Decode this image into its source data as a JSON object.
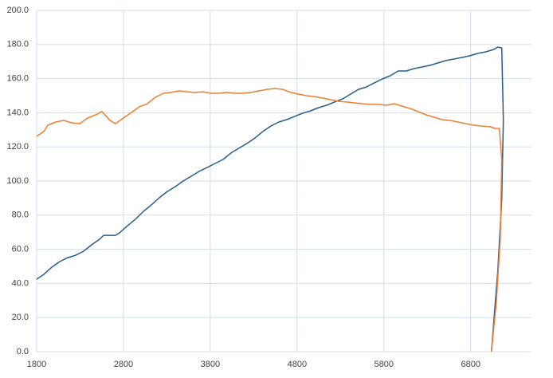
{
  "chart_data": {
    "type": "line",
    "grid": true,
    "xlim": [
      1800,
      7500
    ],
    "xticks": [
      1800,
      2800,
      3800,
      4800,
      5800,
      6800
    ],
    "ylim": [
      0,
      200
    ],
    "yticks": [
      {
        "value": 0,
        "label": "0.0"
      },
      {
        "value": 20,
        "label": "20.0"
      },
      {
        "value": 40,
        "label": "40.0"
      },
      {
        "value": 60,
        "label": "60.0"
      },
      {
        "value": 80,
        "label": "80.0"
      },
      {
        "value": 100,
        "label": "100.0"
      },
      {
        "value": 120,
        "label": "120.0"
      },
      {
        "value": 140,
        "label": "140.0"
      },
      {
        "value": 160,
        "label": "160.0"
      },
      {
        "value": 180,
        "label": "180.0"
      },
      {
        "value": 200,
        "label": "200.0"
      }
    ],
    "series": [
      {
        "color": "#255e8b",
        "x": [
          1800,
          1883,
          1974,
          2066,
          2158,
          2250,
          2341,
          2433,
          2525,
          2571,
          2708,
          2754,
          2846,
          2938,
          3029,
          3121,
          3213,
          3305,
          3396,
          3488,
          3580,
          3671,
          3763,
          3855,
          3947,
          4038,
          4130,
          4222,
          4314,
          4405,
          4497,
          4589,
          4681,
          4772,
          4864,
          4956,
          5048,
          5139,
          5231,
          5323,
          5415,
          5506,
          5598,
          5690,
          5782,
          5873,
          5965,
          6057,
          6149,
          6240,
          6332,
          6424,
          6516,
          6607,
          6699,
          6791,
          6882,
          6974,
          7066,
          7112,
          7158,
          7176,
          7158,
          7112,
          7038
        ],
        "values": [
          42.5,
          45.3,
          49.5,
          52.8,
          55.1,
          56.5,
          58.9,
          62.6,
          65.9,
          68.2,
          68.2,
          69.6,
          73.8,
          77.6,
          82.2,
          86,
          90.2,
          93.9,
          96.7,
          100,
          102.8,
          105.6,
          107.9,
          110.3,
          112.6,
          116.4,
          119.2,
          122,
          125.2,
          129,
          132.2,
          134.6,
          136,
          137.9,
          139.7,
          141.1,
          143,
          144.4,
          146.3,
          148.1,
          150.9,
          153.7,
          155.1,
          157.5,
          159.8,
          161.7,
          164.5,
          164.5,
          165.9,
          166.8,
          167.8,
          169.2,
          170.6,
          171.5,
          172.4,
          173.4,
          174.8,
          175.7,
          177.1,
          178.5,
          178,
          136,
          89.3,
          47.2,
          0
        ]
      },
      {
        "color": "#ed7d31",
        "x": [
          1800,
          1883,
          1928,
          2020,
          2112,
          2204,
          2295,
          2387,
          2479,
          2552,
          2644,
          2708,
          2800,
          2892,
          2983,
          3075,
          3167,
          3259,
          3350,
          3442,
          3534,
          3626,
          3717,
          3809,
          3901,
          3993,
          4084,
          4176,
          4268,
          4360,
          4451,
          4543,
          4635,
          4727,
          4818,
          4910,
          5002,
          5093,
          5185,
          5277,
          5369,
          5460,
          5552,
          5644,
          5736,
          5827,
          5919,
          6011,
          6103,
          6194,
          6286,
          6378,
          6470,
          6561,
          6653,
          6745,
          6837,
          6928,
          7020,
          7084,
          7130,
          7158,
          7140,
          7094,
          7038
        ],
        "values": [
          126.2,
          129,
          132.7,
          134.6,
          135.5,
          134.1,
          133.6,
          136.9,
          138.8,
          140.7,
          135.5,
          133.6,
          136.9,
          140.2,
          143.5,
          145.3,
          149.1,
          151.4,
          151.9,
          152.8,
          152.3,
          151.9,
          152.3,
          151.4,
          151.4,
          151.9,
          151.4,
          151.4,
          151.9,
          152.8,
          153.7,
          154.2,
          153.7,
          151.9,
          150.9,
          150,
          149.5,
          148.6,
          147.7,
          146.7,
          146.3,
          145.8,
          145.3,
          144.9,
          144.9,
          144.4,
          145.3,
          143.9,
          142.5,
          140.7,
          138.8,
          137.4,
          136,
          135.5,
          134.6,
          133.6,
          132.7,
          132.2,
          131.8,
          130.8,
          130.8,
          112.6,
          65.9,
          28.5,
          0
        ]
      }
    ]
  }
}
